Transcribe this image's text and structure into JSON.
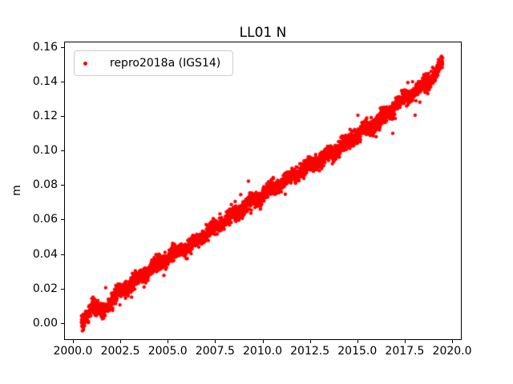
{
  "figure": {
    "background": "#ffffff"
  },
  "chart_data": {
    "type": "scatter",
    "title": "LL01 N",
    "xlabel": "",
    "ylabel": "m",
    "grid": false,
    "legend": {
      "position": "upper left",
      "entries": [
        {
          "label": "repro2018a (IGS14)",
          "marker": "dot-icon",
          "color": "#ff0000"
        }
      ]
    },
    "xlim": [
      1999.579,
      2020.463
    ],
    "ylim": [
      -0.0094,
      0.1627
    ],
    "xticks": [
      2000.0,
      2002.5,
      2005.0,
      2007.5,
      2010.0,
      2012.5,
      2015.0,
      2017.5,
      2020.0
    ],
    "xtick_labels": [
      "2000.0",
      "2002.5",
      "2005.0",
      "2007.5",
      "2010.0",
      "2012.5",
      "2015.0",
      "2017.5",
      "2020.0"
    ],
    "yticks": [
      0.0,
      0.02,
      0.04,
      0.06,
      0.08,
      0.1,
      0.12,
      0.14,
      0.16
    ],
    "ytick_labels": [
      "0.00",
      "0.02",
      "0.04",
      "0.06",
      "0.08",
      "0.10",
      "0.12",
      "0.14",
      "0.16"
    ],
    "marker": {
      "style": "point",
      "color": "#ff0000",
      "radius_px": 2.2
    },
    "series": [
      {
        "name": "repro2018a (IGS14)",
        "x_start": 2000.45,
        "x_end": 2019.5,
        "n_points": 3500,
        "trend_anchors": [
          [
            2000.45,
            -0.001
          ],
          [
            2000.7,
            0.004
          ],
          [
            2001.0,
            0.01
          ],
          [
            2001.5,
            0.006
          ],
          [
            2002.0,
            0.013
          ],
          [
            2002.5,
            0.018
          ],
          [
            2003.5,
            0.026
          ],
          [
            2005.0,
            0.038
          ],
          [
            2006.0,
            0.044
          ],
          [
            2007.5,
            0.055
          ],
          [
            2009.0,
            0.067
          ],
          [
            2010.0,
            0.074
          ],
          [
            2011.5,
            0.085
          ],
          [
            2012.5,
            0.091
          ],
          [
            2014.0,
            0.101
          ],
          [
            2015.0,
            0.109
          ],
          [
            2016.5,
            0.12
          ],
          [
            2017.5,
            0.131
          ],
          [
            2018.5,
            0.138
          ],
          [
            2019.0,
            0.143
          ],
          [
            2019.5,
            0.151
          ]
        ],
        "annual_amp": 0.0012,
        "noise_sd": 0.0021,
        "outlier_rate": 0.015,
        "outlier_sd": 0.005,
        "seed": 20180,
        "explicit_outliers": [
          [
            2000.5,
            -0.0045
          ],
          [
            2000.55,
            -0.003
          ],
          [
            2004.8,
            0.0276
          ],
          [
            2011.2,
            0.0747
          ],
          [
            2018.05,
            0.1205
          ],
          [
            2018.3,
            0.128
          ]
        ],
        "y_min_observed": -0.005,
        "y_max_observed": 0.153
      }
    ]
  }
}
